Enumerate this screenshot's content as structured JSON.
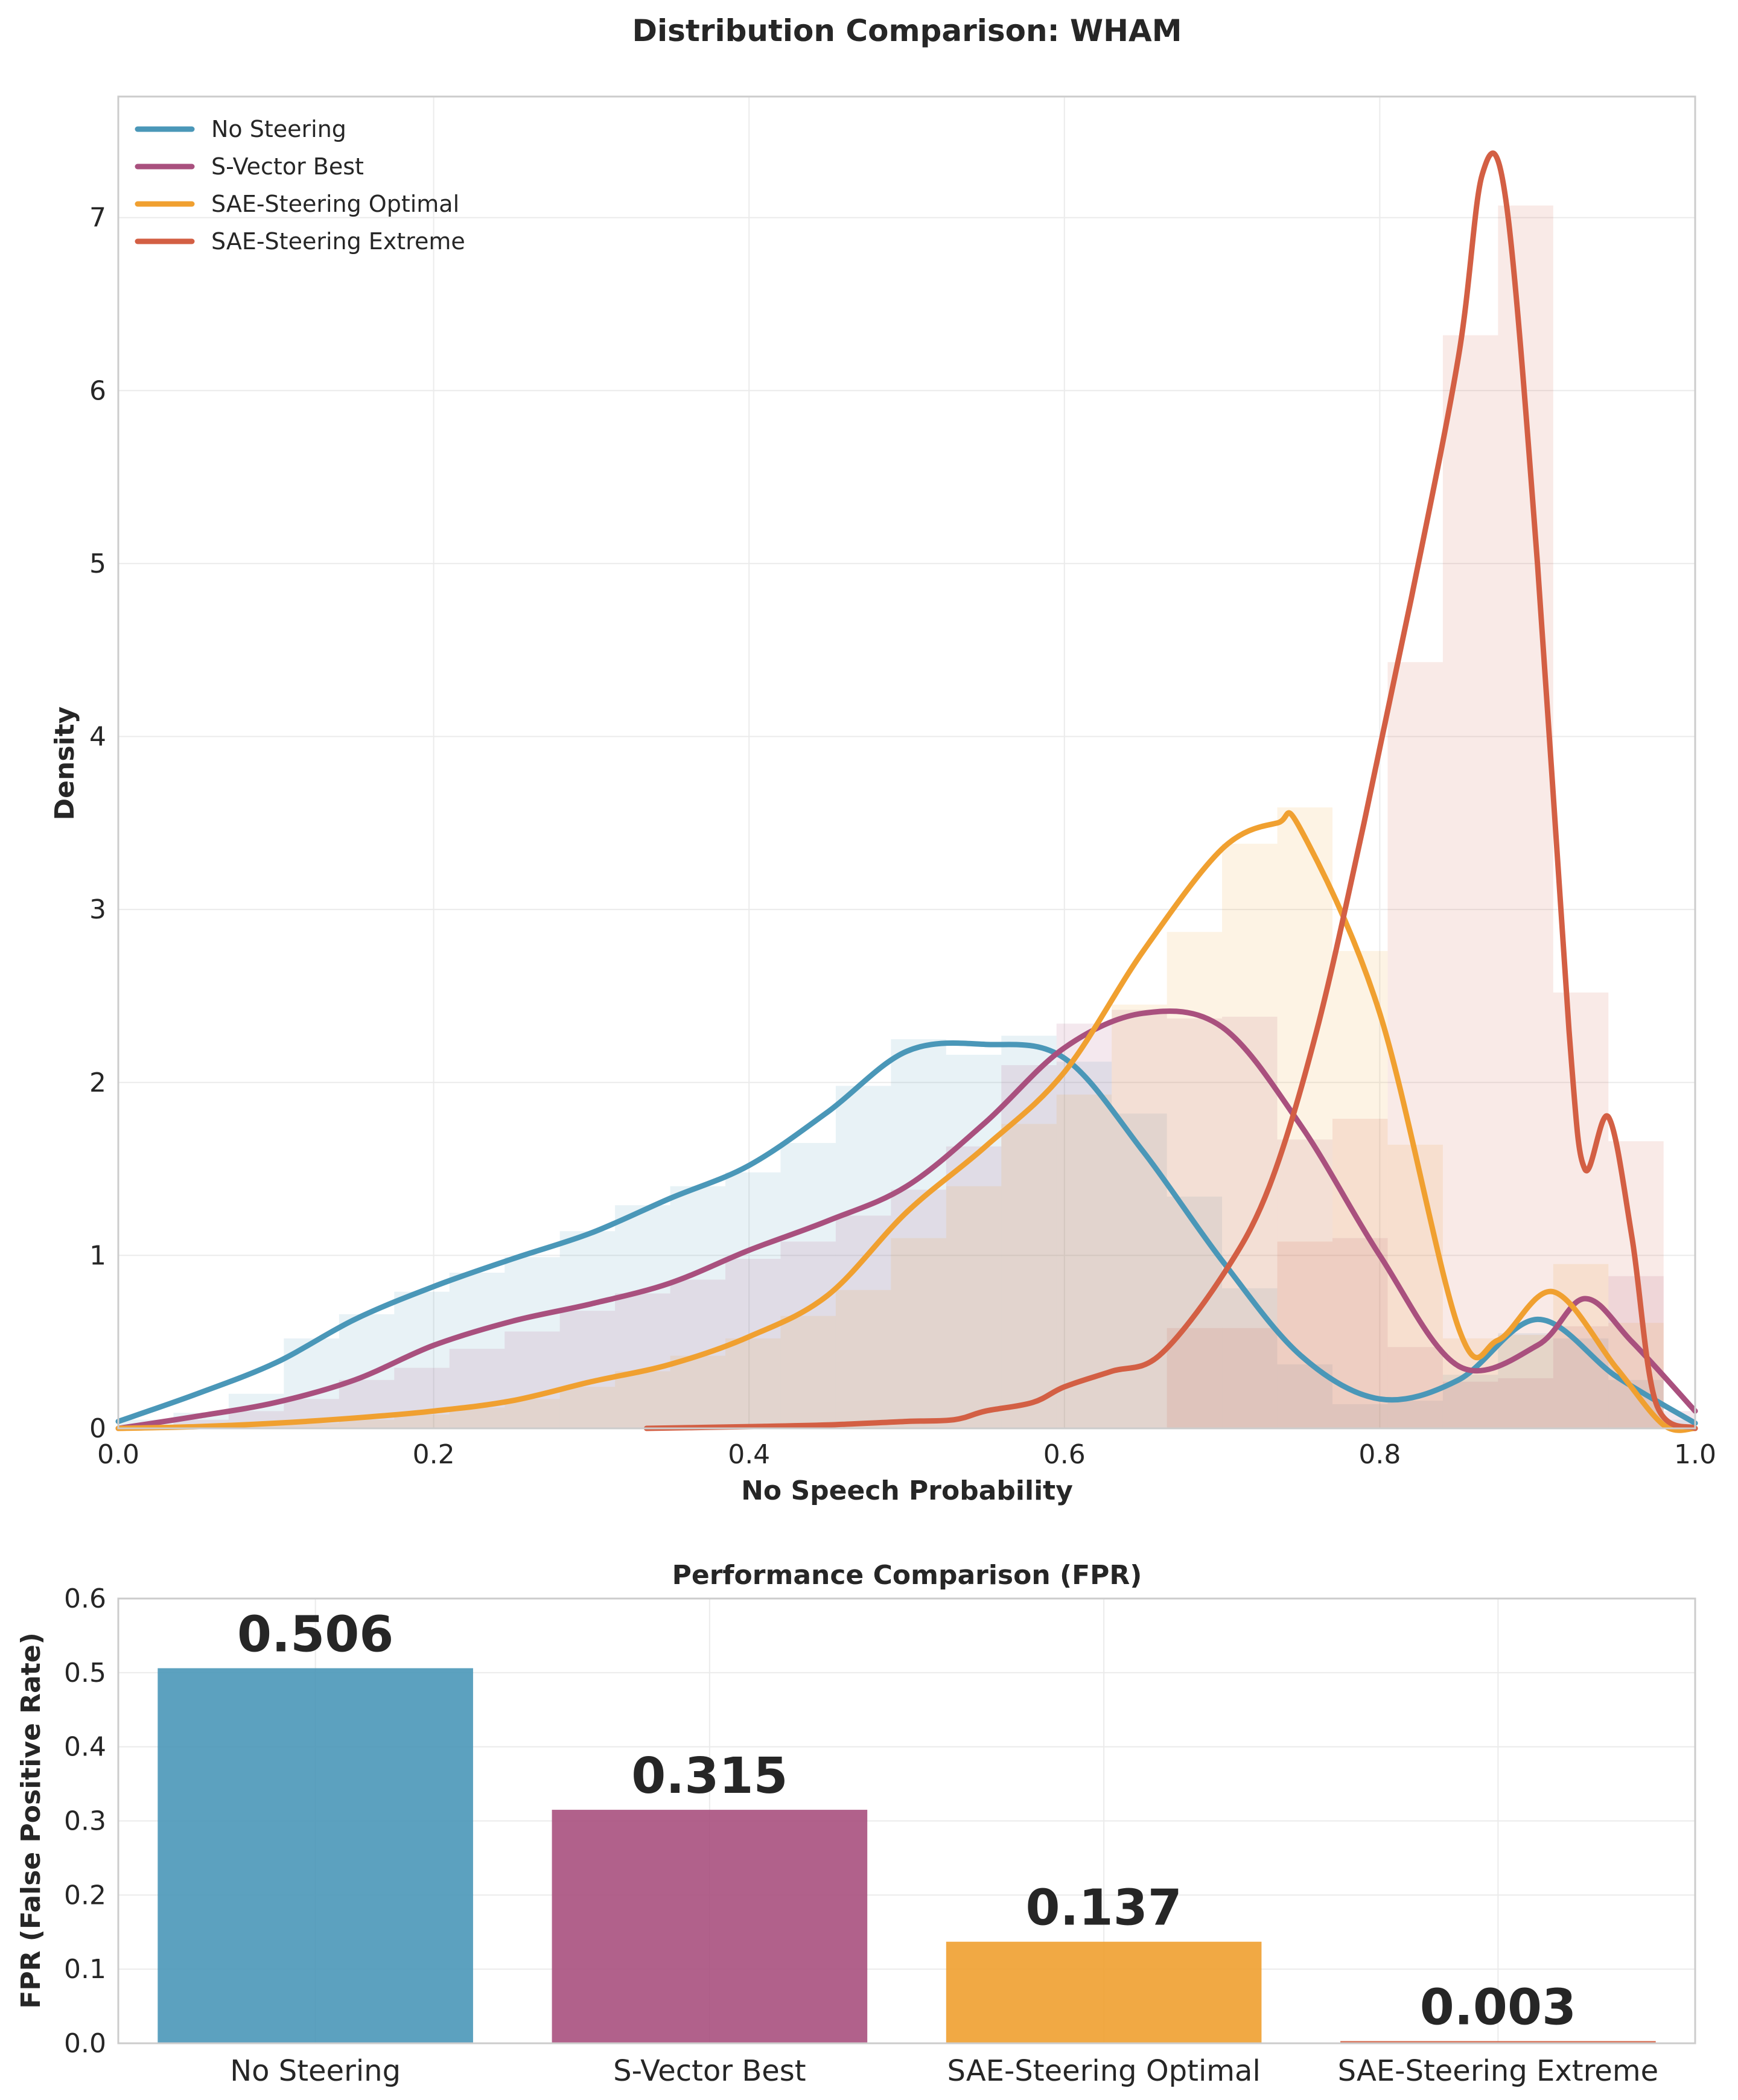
{
  "chart_data": [
    {
      "type": "line",
      "title": "Distribution Comparison: WHAM",
      "xlabel": "No Speech Probability",
      "ylabel": "Density",
      "xlim": [
        0.0,
        1.0
      ],
      "ylim": [
        0,
        7.7
      ],
      "xticks": [
        "0.0",
        "0.2",
        "0.4",
        "0.6",
        "0.8",
        "1.0"
      ],
      "yticks": [
        "0",
        "1",
        "2",
        "3",
        "4",
        "5",
        "6",
        "7"
      ],
      "grid": true,
      "legend": "top-left",
      "series": [
        {
          "name": "No Steering",
          "color": "#4a97b8",
          "kde": [
            [
              0.0,
              0.04
            ],
            [
              0.05,
              0.2
            ],
            [
              0.1,
              0.38
            ],
            [
              0.15,
              0.63
            ],
            [
              0.2,
              0.82
            ],
            [
              0.25,
              0.98
            ],
            [
              0.3,
              1.13
            ],
            [
              0.35,
              1.33
            ],
            [
              0.4,
              1.52
            ],
            [
              0.45,
              1.83
            ],
            [
              0.5,
              2.18
            ],
            [
              0.55,
              2.22
            ],
            [
              0.6,
              2.14
            ],
            [
              0.65,
              1.6
            ],
            [
              0.7,
              0.97
            ],
            [
              0.75,
              0.42
            ],
            [
              0.8,
              0.17
            ],
            [
              0.85,
              0.28
            ],
            [
              0.9,
              0.63
            ],
            [
              0.95,
              0.3
            ],
            [
              1.0,
              0.03
            ]
          ],
          "hist": [
            [
              0.0,
              0.05
            ],
            [
              0.035,
              0.09
            ],
            [
              0.07,
              0.2
            ],
            [
              0.105,
              0.52
            ],
            [
              0.14,
              0.66
            ],
            [
              0.175,
              0.79
            ],
            [
              0.21,
              0.9
            ],
            [
              0.245,
              0.99
            ],
            [
              0.28,
              1.14
            ],
            [
              0.315,
              1.29
            ],
            [
              0.35,
              1.4
            ],
            [
              0.385,
              1.48
            ],
            [
              0.42,
              1.65
            ],
            [
              0.455,
              1.98
            ],
            [
              0.49,
              2.25
            ],
            [
              0.525,
              2.16
            ],
            [
              0.56,
              2.27
            ],
            [
              0.595,
              2.12
            ],
            [
              0.63,
              1.82
            ],
            [
              0.665,
              1.34
            ],
            [
              0.7,
              0.81
            ],
            [
              0.735,
              0.37
            ],
            [
              0.77,
              0.14
            ],
            [
              0.805,
              0.16
            ],
            [
              0.84,
              0.31
            ],
            [
              0.875,
              0.55
            ],
            [
              0.91,
              0.52
            ],
            [
              0.945,
              0.28
            ],
            [
              0.98,
              0.05
            ]
          ]
        },
        {
          "name": "S-Vector Best",
          "color": "#a9507e",
          "kde": [
            [
              0.0,
              0.0
            ],
            [
              0.05,
              0.07
            ],
            [
              0.1,
              0.15
            ],
            [
              0.15,
              0.28
            ],
            [
              0.2,
              0.48
            ],
            [
              0.25,
              0.62
            ],
            [
              0.3,
              0.72
            ],
            [
              0.35,
              0.84
            ],
            [
              0.4,
              1.03
            ],
            [
              0.45,
              1.2
            ],
            [
              0.5,
              1.4
            ],
            [
              0.55,
              1.77
            ],
            [
              0.6,
              2.2
            ],
            [
              0.65,
              2.4
            ],
            [
              0.7,
              2.32
            ],
            [
              0.75,
              1.75
            ],
            [
              0.8,
              1.0
            ],
            [
              0.85,
              0.36
            ],
            [
              0.9,
              0.48
            ],
            [
              0.93,
              0.75
            ],
            [
              0.96,
              0.5
            ],
            [
              1.0,
              0.1
            ]
          ],
          "hist": [
            [
              0.0,
              0.01
            ],
            [
              0.035,
              0.05
            ],
            [
              0.07,
              0.1
            ],
            [
              0.105,
              0.17
            ],
            [
              0.14,
              0.28
            ],
            [
              0.175,
              0.35
            ],
            [
              0.21,
              0.46
            ],
            [
              0.245,
              0.56
            ],
            [
              0.28,
              0.68
            ],
            [
              0.315,
              0.78
            ],
            [
              0.35,
              0.86
            ],
            [
              0.385,
              0.98
            ],
            [
              0.42,
              1.08
            ],
            [
              0.455,
              1.23
            ],
            [
              0.49,
              1.38
            ],
            [
              0.525,
              1.63
            ],
            [
              0.56,
              2.1
            ],
            [
              0.595,
              2.34
            ],
            [
              0.63,
              2.42
            ],
            [
              0.665,
              2.37
            ],
            [
              0.7,
              2.38
            ],
            [
              0.735,
              1.67
            ],
            [
              0.77,
              1.1
            ],
            [
              0.805,
              0.47
            ],
            [
              0.84,
              0.27
            ],
            [
              0.875,
              0.29
            ],
            [
              0.91,
              0.59
            ],
            [
              0.945,
              0.88
            ],
            [
              0.98,
              0.1
            ]
          ]
        },
        {
          "name": "SAE-Steering Optimal",
          "color": "#f0a030",
          "kde": [
            [
              0.0,
              0.0
            ],
            [
              0.05,
              0.01
            ],
            [
              0.1,
              0.03
            ],
            [
              0.15,
              0.06
            ],
            [
              0.2,
              0.1
            ],
            [
              0.25,
              0.16
            ],
            [
              0.3,
              0.27
            ],
            [
              0.35,
              0.37
            ],
            [
              0.4,
              0.53
            ],
            [
              0.45,
              0.77
            ],
            [
              0.5,
              1.25
            ],
            [
              0.55,
              1.63
            ],
            [
              0.6,
              2.06
            ],
            [
              0.65,
              2.76
            ],
            [
              0.7,
              3.35
            ],
            [
              0.735,
              3.5
            ],
            [
              0.75,
              3.46
            ],
            [
              0.8,
              2.4
            ],
            [
              0.85,
              0.58
            ],
            [
              0.875,
              0.51
            ],
            [
              0.91,
              0.79
            ],
            [
              0.95,
              0.35
            ],
            [
              0.98,
              0.02
            ],
            [
              1.0,
              0.0
            ]
          ],
          "hist": [
            [
              0.0,
              0.0
            ],
            [
              0.035,
              0.01
            ],
            [
              0.07,
              0.02
            ],
            [
              0.105,
              0.03
            ],
            [
              0.14,
              0.05
            ],
            [
              0.175,
              0.08
            ],
            [
              0.21,
              0.12
            ],
            [
              0.245,
              0.17
            ],
            [
              0.28,
              0.24
            ],
            [
              0.315,
              0.33
            ],
            [
              0.35,
              0.42
            ],
            [
              0.385,
              0.52
            ],
            [
              0.42,
              0.65
            ],
            [
              0.455,
              0.8
            ],
            [
              0.49,
              1.1
            ],
            [
              0.525,
              1.4
            ],
            [
              0.56,
              1.76
            ],
            [
              0.595,
              1.93
            ],
            [
              0.63,
              2.45
            ],
            [
              0.665,
              2.87
            ],
            [
              0.7,
              3.38
            ],
            [
              0.735,
              3.59
            ],
            [
              0.77,
              2.76
            ],
            [
              0.805,
              1.64
            ],
            [
              0.84,
              0.52
            ],
            [
              0.875,
              0.54
            ],
            [
              0.91,
              0.95
            ],
            [
              0.945,
              0.61
            ],
            [
              0.98,
              0.02
            ]
          ]
        },
        {
          "name": "SAE-Steering Extreme",
          "color": "#d35f44",
          "kde": [
            [
              0.335,
              0.0
            ],
            [
              0.4,
              0.01
            ],
            [
              0.45,
              0.02
            ],
            [
              0.5,
              0.04
            ],
            [
              0.53,
              0.05
            ],
            [
              0.55,
              0.1
            ],
            [
              0.58,
              0.15
            ],
            [
              0.6,
              0.24
            ],
            [
              0.63,
              0.33
            ],
            [
              0.66,
              0.42
            ],
            [
              0.7,
              0.88
            ],
            [
              0.73,
              1.4
            ],
            [
              0.76,
              2.3
            ],
            [
              0.79,
              3.5
            ],
            [
              0.82,
              4.8
            ],
            [
              0.85,
              6.2
            ],
            [
              0.865,
              7.25
            ],
            [
              0.88,
              7.1
            ],
            [
              0.9,
              5.0
            ],
            [
              0.92,
              2.3
            ],
            [
              0.93,
              1.5
            ],
            [
              0.945,
              1.8
            ],
            [
              0.96,
              1.1
            ],
            [
              0.975,
              0.15
            ],
            [
              1.0,
              0.0
            ]
          ],
          "hist": [
            [
              0.665,
              0.58
            ],
            [
              0.7,
              0.58
            ],
            [
              0.735,
              1.08
            ],
            [
              0.77,
              1.79
            ],
            [
              0.805,
              4.43
            ],
            [
              0.84,
              6.32
            ],
            [
              0.875,
              7.07
            ],
            [
              0.91,
              2.52
            ],
            [
              0.945,
              1.66
            ]
          ]
        }
      ]
    },
    {
      "type": "bar",
      "title": "Performance Comparison (FPR)",
      "xlabel": "",
      "ylabel": "FPR (False Positive Rate)",
      "ylim": [
        0,
        0.6
      ],
      "yticks": [
        "0.0",
        "0.1",
        "0.2",
        "0.3",
        "0.4",
        "0.5",
        "0.6"
      ],
      "categories": [
        "No Steering",
        "S-Vector Best",
        "SAE-Steering Optimal",
        "SAE-Steering Extreme"
      ],
      "values": [
        0.506,
        0.315,
        0.137,
        0.003
      ],
      "labels": [
        "0.506",
        "0.315",
        "0.137",
        "0.003"
      ],
      "colors": [
        "#4a97b8",
        "#a9507e",
        "#f0a030",
        "#d35f44"
      ]
    }
  ]
}
